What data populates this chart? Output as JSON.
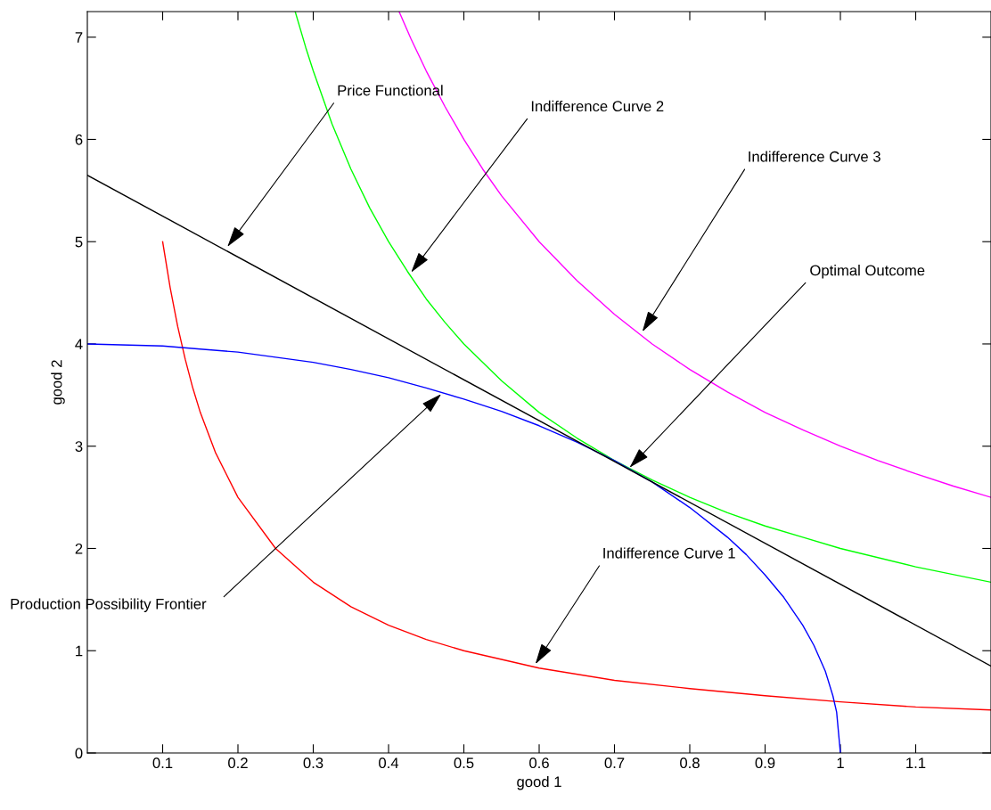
{
  "chart_data": {
    "type": "line",
    "xlabel": "good 1",
    "ylabel": "good 2",
    "xlim": [
      0,
      1.2
    ],
    "ylim": [
      0,
      7.25
    ],
    "xticks": [
      0.1,
      0.2,
      0.3,
      0.4,
      0.5,
      0.6,
      0.7,
      0.8,
      0.9,
      1,
      1.1
    ],
    "yticks": [
      0,
      1,
      2,
      3,
      4,
      5,
      6,
      7
    ],
    "grid": false,
    "marker": "none",
    "line_style": "solid",
    "series": [
      {
        "color": "#ff0000",
        "x": [
          0.1,
          0.11,
          0.12,
          0.13,
          0.14,
          0.15,
          0.17,
          0.2,
          0.25,
          0.3,
          0.35,
          0.4,
          0.45,
          0.5,
          0.6,
          0.7,
          0.8,
          0.9,
          1.0,
          1.1,
          1.2
        ],
        "values": [
          5,
          4.55,
          4.17,
          3.85,
          3.57,
          3.33,
          2.94,
          2.5,
          2,
          1.67,
          1.43,
          1.25,
          1.11,
          1,
          0.83,
          0.71,
          0.63,
          0.56,
          0.5,
          0.45,
          0.42
        ]
      },
      {
        "color": "#00ff00",
        "x": [
          0.276,
          0.29,
          0.3,
          0.325,
          0.35,
          0.375,
          0.4,
          0.425,
          0.45,
          0.475,
          0.5,
          0.55,
          0.6,
          0.65,
          0.7,
          0.75,
          0.8,
          0.85,
          0.9,
          0.95,
          1.0,
          1.1,
          1.2
        ],
        "values": [
          7.25,
          6.9,
          6.67,
          6.15,
          5.71,
          5.33,
          5,
          4.71,
          4.44,
          4.21,
          4,
          3.64,
          3.33,
          3.08,
          2.86,
          2.67,
          2.5,
          2.35,
          2.22,
          2.11,
          2,
          1.82,
          1.67
        ]
      },
      {
        "color": "#ff00ff",
        "x": [
          0.414,
          0.43,
          0.45,
          0.475,
          0.5,
          0.525,
          0.55,
          0.6,
          0.65,
          0.7,
          0.75,
          0.8,
          0.85,
          0.9,
          0.95,
          1.0,
          1.05,
          1.1,
          1.15,
          1.2
        ],
        "values": [
          7.25,
          6.98,
          6.67,
          6.32,
          6,
          5.71,
          5.45,
          5,
          4.62,
          4.29,
          4,
          3.75,
          3.53,
          3.33,
          3.16,
          3,
          2.86,
          2.73,
          2.61,
          2.5
        ]
      },
      {
        "color": "#0000ff",
        "x": [
          0,
          0.1,
          0.15,
          0.2,
          0.25,
          0.3,
          0.35,
          0.4,
          0.45,
          0.5,
          0.55,
          0.6,
          0.65,
          0.7,
          0.75,
          0.8,
          0.85,
          0.875,
          0.9,
          0.925,
          0.95,
          0.965,
          0.98,
          0.99,
          0.995,
          1.0
        ],
        "values": [
          4,
          3.98,
          3.95,
          3.92,
          3.87,
          3.82,
          3.75,
          3.67,
          3.57,
          3.46,
          3.34,
          3.2,
          3.04,
          2.86,
          2.65,
          2.4,
          2.11,
          1.94,
          1.74,
          1.52,
          1.25,
          1.05,
          0.8,
          0.56,
          0.4,
          0
        ]
      },
      {
        "color": "#000000",
        "x": [
          0,
          1.2
        ],
        "values": [
          5.65,
          0.85
        ]
      }
    ],
    "annotations": [
      {
        "text": "Price Functional",
        "x": 0.186,
        "y": 4.95
      },
      {
        "text": "Indifference Curve 2",
        "x": 0.43,
        "y": 4.7
      },
      {
        "text": "Indifference Curve 3",
        "x": 0.737,
        "y": 4.12
      },
      {
        "text": "Optimal Outcome",
        "x": 0.72,
        "y": 2.79
      },
      {
        "text": "Indifference Curve 1",
        "x": 0.595,
        "y": 0.87
      },
      {
        "text": "Production Possibility Frontier",
        "x": 0.47,
        "y": 3.51
      }
    ]
  }
}
